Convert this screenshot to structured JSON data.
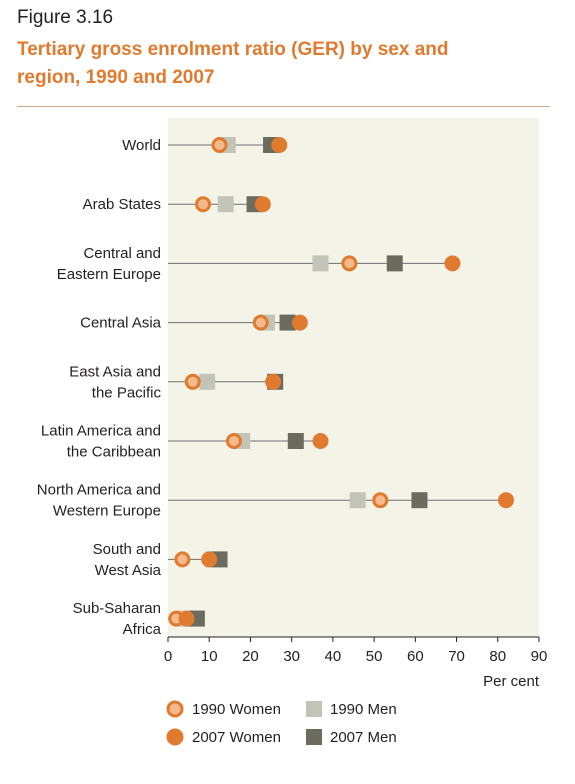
{
  "figure_label": "Figure 3.16",
  "title_line1": "Tertiary gross enrolment ratio (GER) by sex and",
  "title_line2": "region, 1990 and 2007",
  "colors": {
    "plot_bg": "#f3f3e8",
    "women_1990_fill": "#f4b98c",
    "women_outline": "#e07a2e",
    "women_2007_fill": "#e07a2e",
    "men_1990": "#c3c4b8",
    "men_2007": "#6b6b5e",
    "title": "#e07a2e"
  },
  "legend": {
    "women_1990": "1990 Women",
    "men_1990": "1990 Men",
    "women_2007": "2007 Women",
    "men_2007": "2007 Men"
  },
  "chart_data": {
    "type": "scatter",
    "orientation": "horizontal dot plot",
    "xlabel": "Per cent",
    "xlim": [
      0,
      90
    ],
    "xticks": [
      0,
      10,
      20,
      30,
      40,
      50,
      60,
      70,
      80,
      90
    ],
    "categories": [
      [
        "World"
      ],
      [
        "Arab States"
      ],
      [
        "Central and",
        "Eastern Europe"
      ],
      [
        "Central Asia"
      ],
      [
        "East Asia and",
        "the Pacific"
      ],
      [
        "Latin America and",
        "the Caribbean"
      ],
      [
        "North America and",
        "Western Europe"
      ],
      [
        "South and",
        "West Asia"
      ],
      [
        "Sub-Saharan",
        "Africa"
      ]
    ],
    "series": [
      {
        "name": "1990 Women",
        "marker": "circle-light",
        "values": [
          12.5,
          8.5,
          44,
          22.5,
          6,
          16,
          51.5,
          3.5,
          2
        ]
      },
      {
        "name": "1990 Men",
        "marker": "square-light",
        "values": [
          14.5,
          14,
          37,
          24,
          9.5,
          18,
          46,
          11,
          4
        ]
      },
      {
        "name": "2007 Women",
        "marker": "circle-dark",
        "values": [
          27,
          23,
          69,
          32,
          25.5,
          37,
          82,
          10,
          4.5
        ]
      },
      {
        "name": "2007 Men",
        "marker": "square-dark",
        "values": [
          25,
          21,
          55,
          29,
          26,
          31,
          61,
          12.5,
          7
        ]
      }
    ]
  }
}
